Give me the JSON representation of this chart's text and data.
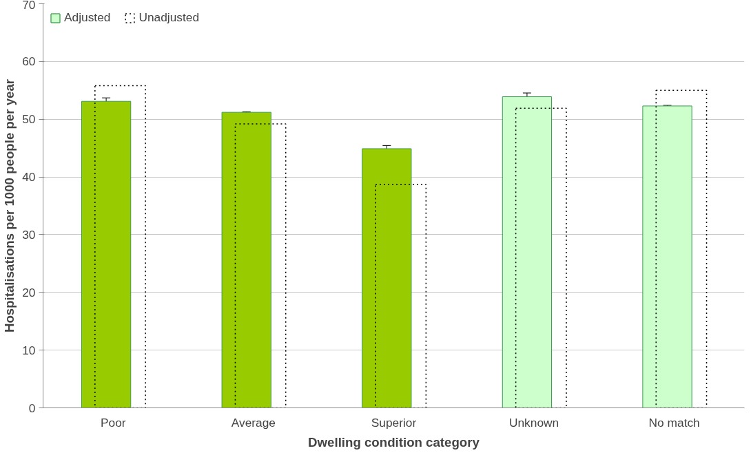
{
  "chart_data": {
    "type": "bar",
    "xlabel": "Dwelling condition category",
    "ylabel": "Hospitalisations per 1000 people per year",
    "categories": [
      "Poor",
      "Average",
      "Superior",
      "Unknown",
      "No match"
    ],
    "series": [
      {
        "name": "Adjusted",
        "colors": [
          "#99cc00",
          "#99cc00",
          "#99cc00",
          "#ccffcc",
          "#ccffcc"
        ],
        "values": [
          53.1,
          51.2,
          44.9,
          53.9,
          52.3
        ],
        "errors": [
          0.6,
          0.1,
          0.55,
          0.65,
          0.1
        ]
      },
      {
        "name": "Unadjusted",
        "color": "#000000",
        "line_style": "dotted",
        "values": [
          55.8,
          49.2,
          38.7,
          51.9,
          55.0
        ]
      }
    ],
    "ylim": [
      0,
      70
    ],
    "yticks": [
      0,
      10,
      20,
      30,
      40,
      50,
      60,
      70
    ],
    "grid": "y",
    "legend": "top left"
  }
}
